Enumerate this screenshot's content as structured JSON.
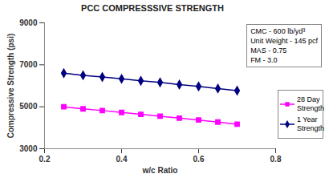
{
  "chart_data": {
    "type": "line",
    "title": "PCC COMPRESSSIVE STRENGTH",
    "x_label": "w/c Ratio",
    "y_label": "Compressive Strength (psi)",
    "x": [
      0.25,
      0.3,
      0.35,
      0.4,
      0.45,
      0.5,
      0.55,
      0.6,
      0.65,
      0.7
    ],
    "series": [
      {
        "name": "28 Day Strength",
        "color": "#ff00ff",
        "marker": "square",
        "line_style": "solid",
        "values": [
          5000,
          4900,
          4820,
          4730,
          4640,
          4550,
          4460,
          4370,
          4270,
          4170
        ]
      },
      {
        "name": "1 Year Strength",
        "color": "#000080",
        "marker": "diamond",
        "line_style": "solid",
        "values": [
          6600,
          6500,
          6420,
          6330,
          6240,
          6160,
          6060,
          5970,
          5870,
          5770
        ]
      }
    ],
    "xlim": [
      0.2,
      0.8
    ],
    "xticks": [
      0.2,
      0.4,
      0.6,
      0.8
    ],
    "ylim": [
      3000,
      9000
    ],
    "yticks": [
      3000,
      5000,
      7000,
      9000
    ],
    "grid": false,
    "legend": "right",
    "annotations": [
      "CMC - 600 lb/yd³",
      "Unit Weight - 145 pcf",
      "MAS - 0.75",
      "FM - 3.0"
    ]
  }
}
